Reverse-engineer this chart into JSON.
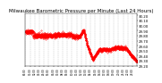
{
  "title": "Milwaukee Barometric Pressure per Minute (Last 24 Hours)",
  "title_fontsize": 4.0,
  "line_color": "#FF0000",
  "bg_color": "#ffffff",
  "plot_bg_color": "#ffffff",
  "grid_color": "#aaaaaa",
  "ylim": [
    29.2,
    30.25
  ],
  "yticks": [
    29.2,
    29.3,
    29.4,
    29.5,
    29.6,
    29.7,
    29.8,
    29.9,
    30.0,
    30.1,
    30.2
  ],
  "num_points": 1440
}
